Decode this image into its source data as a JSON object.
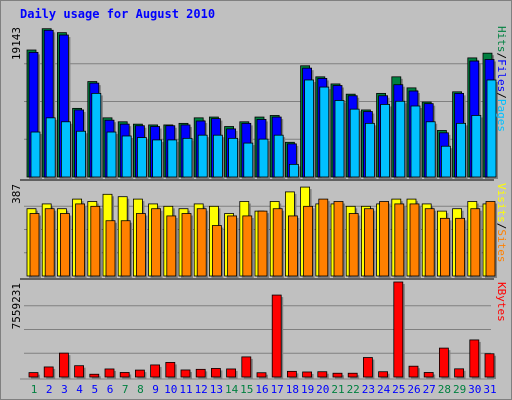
{
  "chart_data": {
    "type": "bar",
    "title": "Daily usage for August 2010",
    "days": [
      "1",
      "2",
      "3",
      "4",
      "5",
      "6",
      "7",
      "8",
      "9",
      "10",
      "11",
      "12",
      "13",
      "14",
      "15",
      "16",
      "17",
      "18",
      "19",
      "20",
      "21",
      "22",
      "23",
      "24",
      "25",
      "26",
      "27",
      "28",
      "29",
      "30",
      "31"
    ],
    "weekend_days": [
      "1",
      "7",
      "8",
      "14",
      "15",
      "21",
      "22",
      "28",
      "29"
    ],
    "panels": [
      {
        "id": "hits",
        "max_label": "19143",
        "ymax": 19143,
        "series": [
          {
            "name": "Hits",
            "color": "#008040",
            "values": [
              16100,
              18800,
              18300,
              8700,
              12100,
              7500,
              7000,
              6700,
              6600,
              6600,
              6800,
              7500,
              7600,
              6400,
              7000,
              7600,
              7800,
              4400,
              14100,
              12700,
              11800,
              10500,
              8500,
              10600,
              12700,
              11300,
              9500,
              5900,
              10800,
              15100,
              15700
            ]
          },
          {
            "name": "Files",
            "color": "#0000ff",
            "values": [
              15800,
              18600,
              18000,
              8500,
              11900,
              7200,
              6700,
              6500,
              6400,
              6500,
              6600,
              7100,
              7400,
              6100,
              6800,
              7300,
              7600,
              4200,
              13800,
              12500,
              11600,
              10300,
              8300,
              10300,
              11700,
              10900,
              9300,
              5600,
              10600,
              14700,
              14900
            ]
          },
          {
            "name": "Pages",
            "color": "#00c0ff",
            "values": [
              5700,
              7500,
              7000,
              5800,
              10600,
              5700,
              5200,
              5000,
              4700,
              4700,
              4900,
              5300,
              5300,
              4900,
              4300,
              4800,
              5300,
              1600,
              12300,
              11400,
              9700,
              8600,
              6800,
              9200,
              9600,
              9000,
              7000,
              3900,
              6800,
              7800,
              12300
            ]
          }
        ]
      },
      {
        "id": "visits",
        "max_label": "387",
        "ymax": 387,
        "series": [
          {
            "name": "Visits",
            "color": "#ffff00",
            "values": [
              280,
              300,
              280,
              320,
              310,
              340,
              330,
              320,
              300,
              290,
              280,
              300,
              290,
              260,
              310,
              270,
              310,
              350,
              370,
              300,
              300,
              290,
              290,
              300,
              320,
              320,
              300,
              270,
              280,
              310,
              300
            ]
          },
          {
            "name": "Sites",
            "color": "#ff8000",
            "values": [
              260,
              280,
              260,
              300,
              290,
              230,
              230,
              260,
              280,
              250,
              260,
              280,
              210,
              250,
              250,
              270,
              280,
              250,
              290,
              320,
              310,
              260,
              280,
              310,
              300,
              300,
              280,
              240,
              240,
              280,
              310
            ]
          }
        ]
      },
      {
        "id": "kbytes",
        "max_label": "7559231",
        "ymax": 7559231,
        "series": [
          {
            "name": "KBytes",
            "color": "#ff0000",
            "values": [
              350000,
              800000,
              1900000,
              900000,
              220000,
              640000,
              360000,
              550000,
              960000,
              1160000,
              560000,
              610000,
              680000,
              640000,
              1600000,
              340000,
              6520000,
              450000,
              400000,
              420000,
              300000,
              300000,
              1550000,
              420000,
              7559231,
              860000,
              360000,
              2300000,
              650000,
              2950000,
              1850000
            ]
          }
        ]
      }
    ],
    "right_labels": {
      "hits": [
        "Pages",
        "/",
        "Files",
        "/",
        "Hits"
      ],
      "visits": [
        "Sites",
        "/",
        "Visits"
      ],
      "kbytes": [
        "KBytes"
      ]
    },
    "colors": {
      "title": "#0000ff",
      "day_label": "#0000ff",
      "weekend_label": "#008040",
      "axis_label": "#000000",
      "separator": "#000000"
    }
  }
}
